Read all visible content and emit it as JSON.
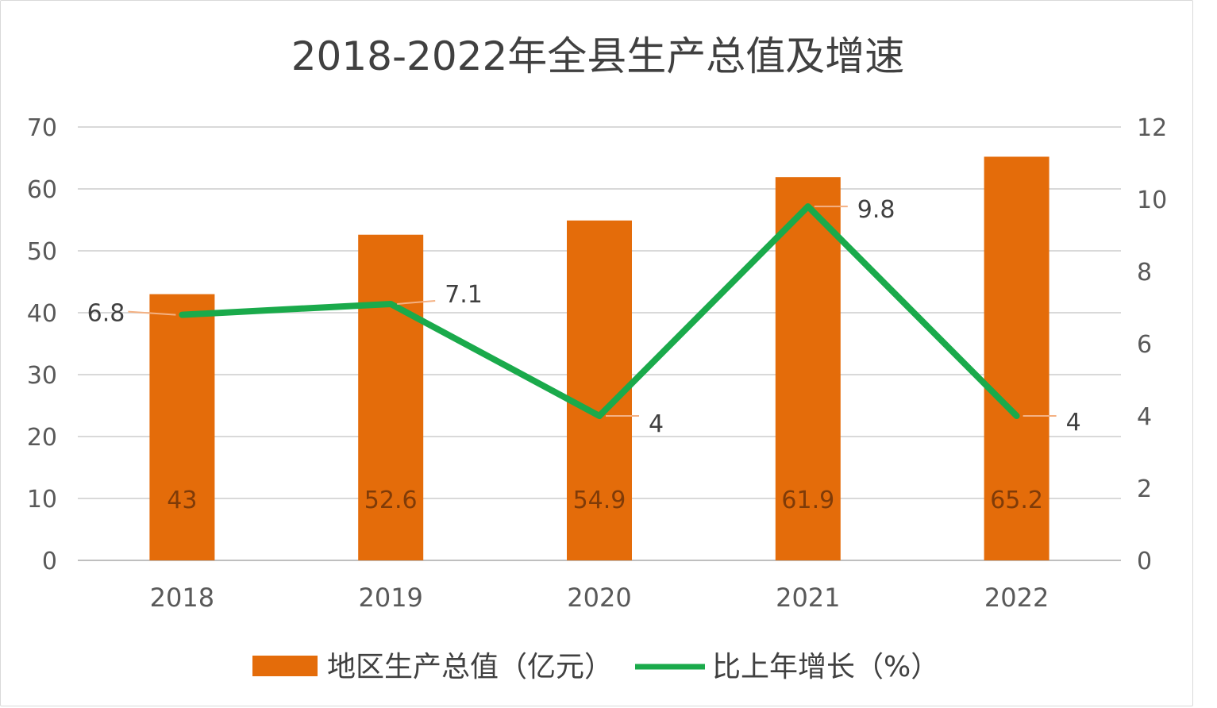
{
  "chart_data": {
    "type": "bar",
    "title": "2018-2022年全县生产总值及增速",
    "categories": [
      "2018",
      "2019",
      "2020",
      "2021",
      "2022"
    ],
    "series": [
      {
        "name": "地区生产总值（亿元）",
        "type": "bar",
        "axis": "left",
        "color": "#E46C0A",
        "values": [
          43,
          52.6,
          54.9,
          61.9,
          65.2
        ],
        "labels": [
          "43",
          "52.6",
          "54.9",
          "61.9",
          "65.2"
        ]
      },
      {
        "name": "比上年增长（%）",
        "type": "line",
        "axis": "right",
        "color": "#1AAA4B",
        "values": [
          6.8,
          7.1,
          4,
          9.8,
          4
        ],
        "labels": [
          "6.8",
          "7.1",
          "4",
          "9.8",
          "4"
        ]
      }
    ],
    "y_left": {
      "min": 0,
      "max": 70,
      "ticks": [
        0,
        10,
        20,
        30,
        40,
        50,
        60,
        70
      ]
    },
    "y_right": {
      "min": 0,
      "max": 12,
      "ticks": [
        0,
        2,
        4,
        6,
        8,
        10,
        12
      ]
    },
    "grid": true,
    "legend_position": "bottom"
  }
}
